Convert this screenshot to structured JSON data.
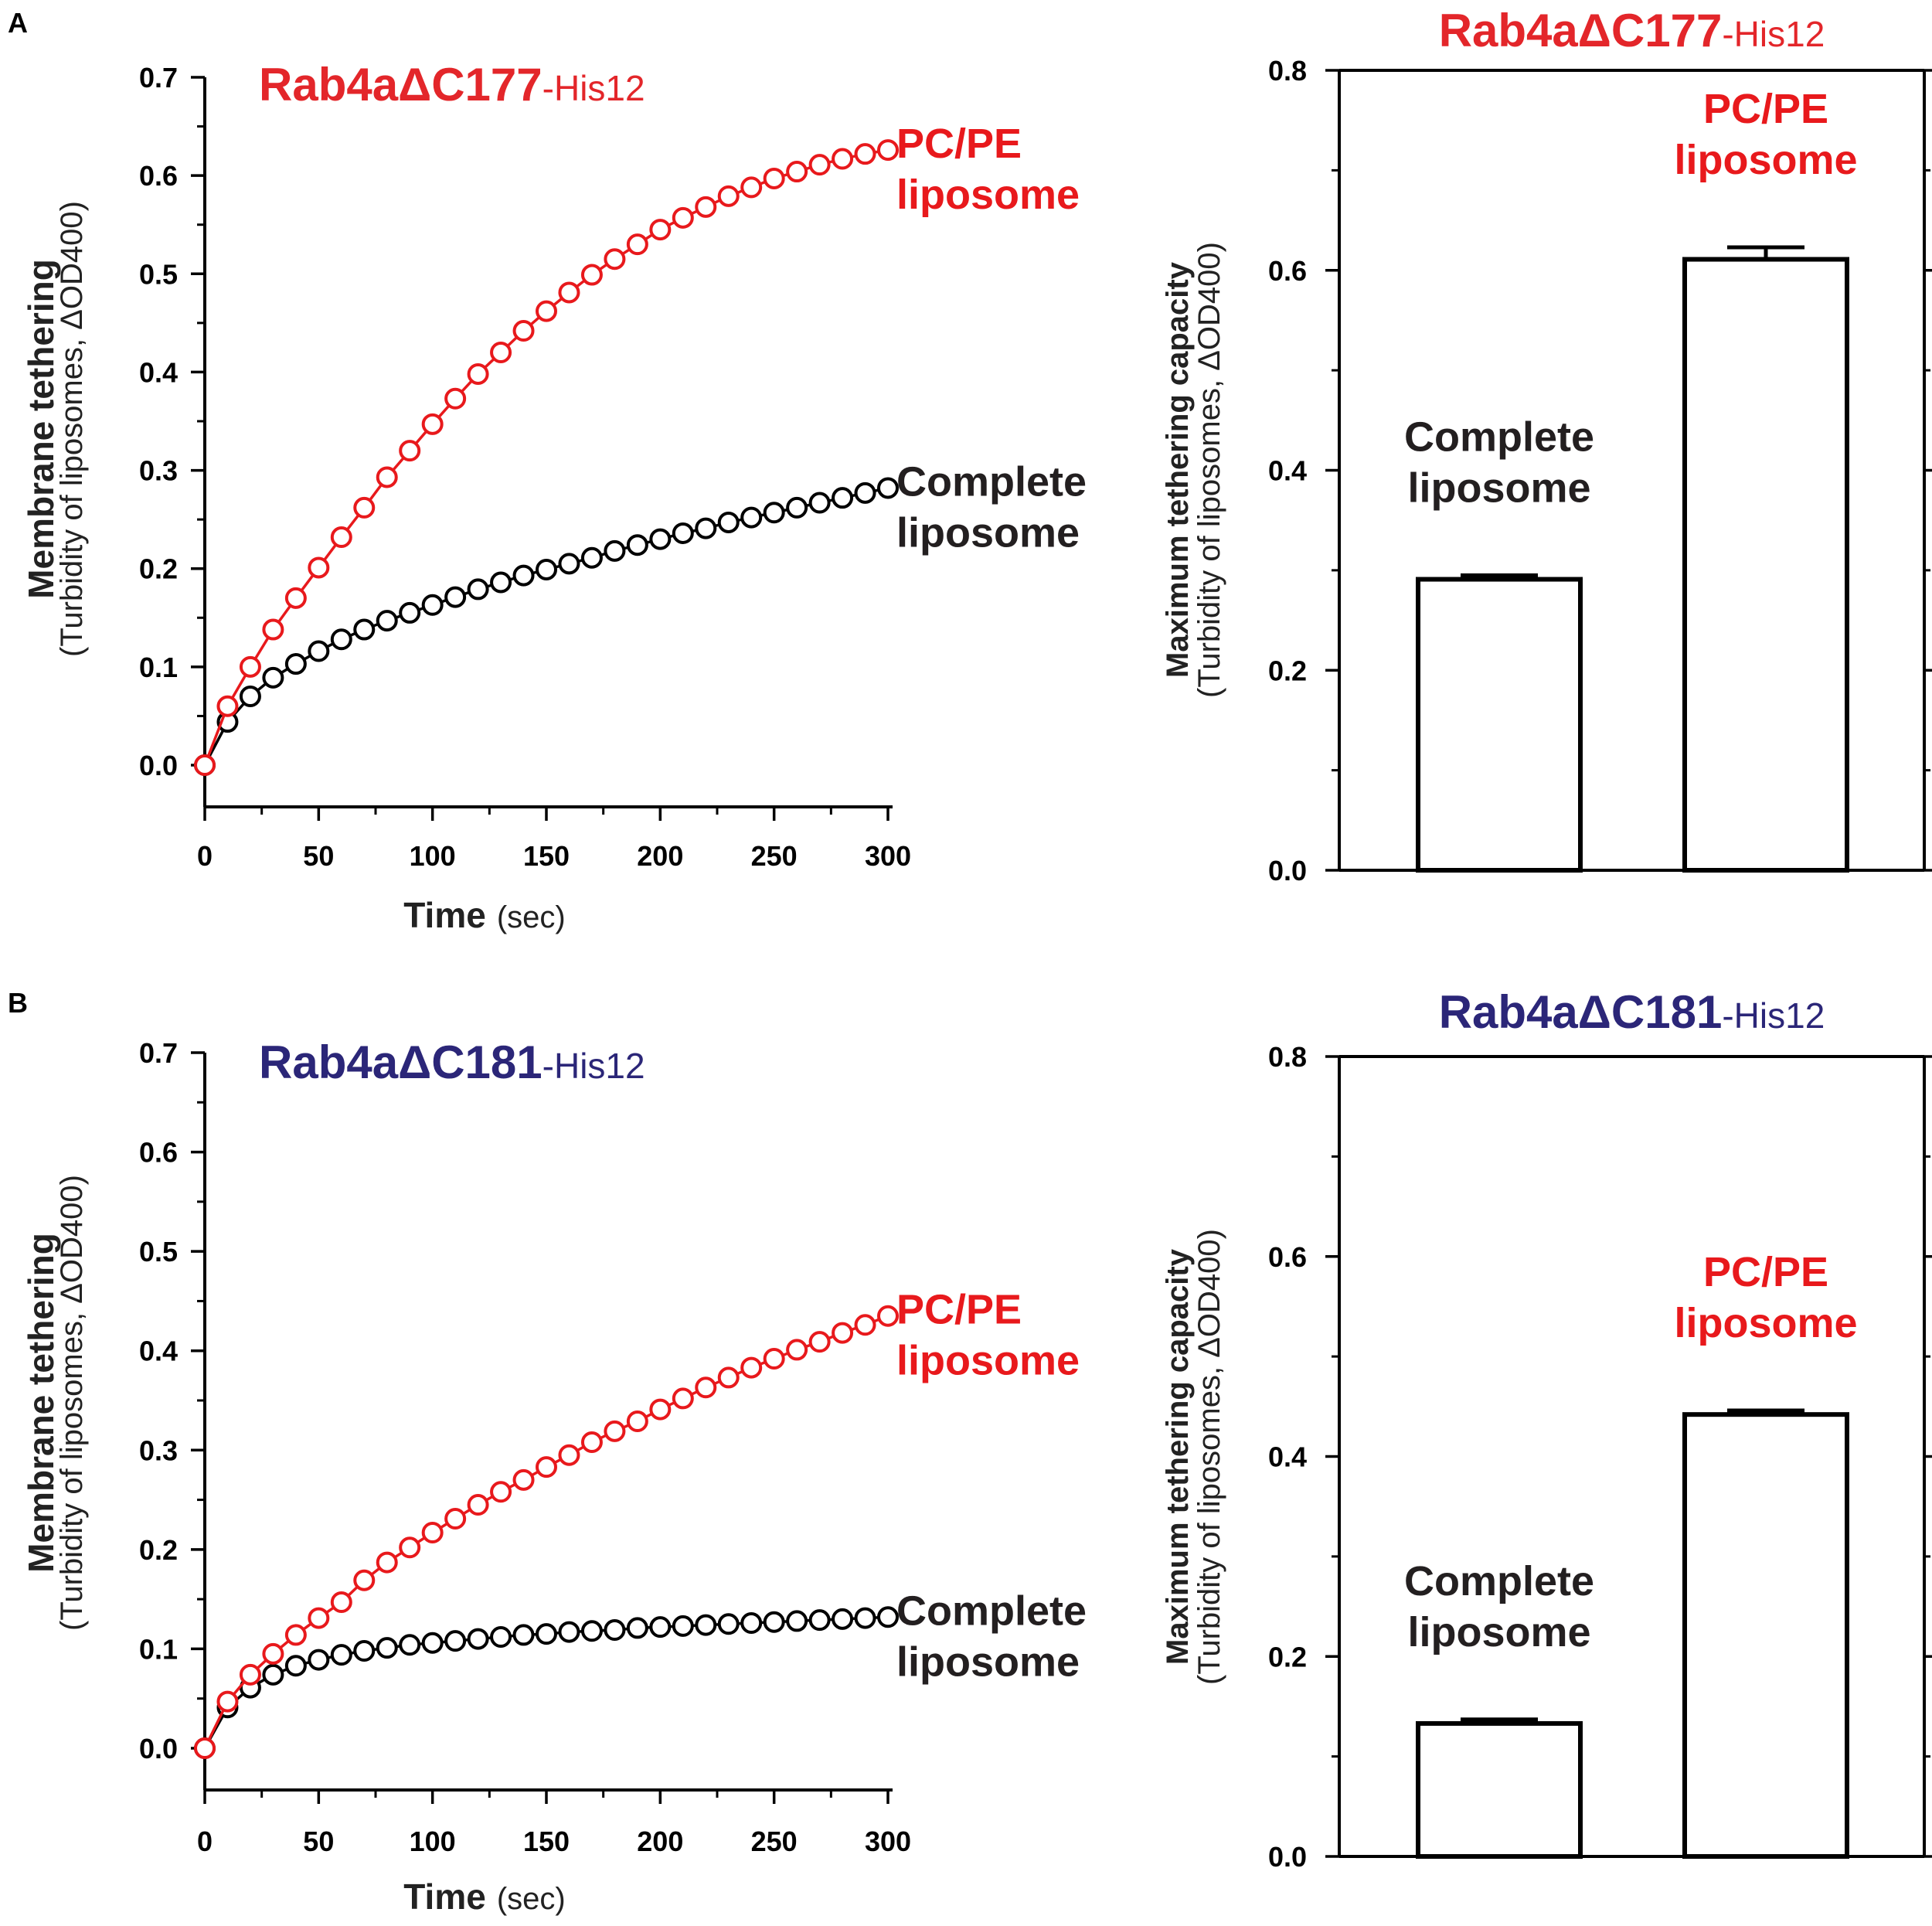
{
  "colors": {
    "axis": "#000000",
    "pc_pe": "#e8191c",
    "complete": "#000000",
    "title_red": "#e3262a",
    "title_navy": "#2b2678",
    "label_dark": "#231f20",
    "bar_fill": "#ffffff"
  },
  "panels": [
    {
      "letter": "A"
    },
    {
      "letter": "B"
    }
  ],
  "chart_data": [
    {
      "type": "scatter",
      "panel": "A",
      "title": "Rab4aΔC177",
      "title_suffix": "-His12",
      "xlabel": "Time",
      "xlabel_unit": "(sec)",
      "ylabel": "Membrane tethering",
      "ylabel_sub": "(Turbidity of liposomes, ΔOD400)",
      "xlim": [
        0,
        300
      ],
      "ylim": [
        0,
        0.7
      ],
      "xticks": [
        "0",
        "50",
        "100",
        "150",
        "200",
        "250",
        "300"
      ],
      "yticks": [
        "0.0",
        "0.1",
        "0.2",
        "0.3",
        "0.4",
        "0.5",
        "0.6",
        "0.7"
      ],
      "x": [
        0,
        10,
        20,
        30,
        40,
        50,
        60,
        70,
        80,
        90,
        100,
        110,
        120,
        130,
        140,
        150,
        160,
        170,
        180,
        190,
        200,
        210,
        220,
        230,
        240,
        250,
        260,
        270,
        280,
        290,
        300
      ],
      "series": [
        {
          "name": "Complete liposome",
          "label_lines": [
            "Complete",
            "liposome"
          ],
          "values": [
            0.0,
            0.044,
            0.07,
            0.089,
            0.103,
            0.116,
            0.128,
            0.138,
            0.147,
            0.155,
            0.163,
            0.171,
            0.179,
            0.186,
            0.193,
            0.199,
            0.205,
            0.211,
            0.218,
            0.224,
            0.23,
            0.236,
            0.241,
            0.247,
            0.252,
            0.257,
            0.262,
            0.267,
            0.272,
            0.277,
            0.282
          ]
        },
        {
          "name": "PC/PE liposome",
          "label_lines": [
            "PC/PE",
            "liposome"
          ],
          "values": [
            0.0,
            0.06,
            0.1,
            0.138,
            0.17,
            0.201,
            0.232,
            0.262,
            0.293,
            0.32,
            0.347,
            0.373,
            0.398,
            0.42,
            0.442,
            0.462,
            0.481,
            0.499,
            0.515,
            0.53,
            0.545,
            0.557,
            0.568,
            0.579,
            0.588,
            0.597,
            0.604,
            0.611,
            0.617,
            0.622,
            0.626
          ]
        }
      ]
    },
    {
      "type": "bar",
      "panel": "A",
      "title": "Rab4aΔC177",
      "title_suffix": "-His12",
      "ylabel": "Maximum tethering capacity",
      "ylabel_sub": "(Turbidity of liposomes, ΔOD400)",
      "ylim": [
        0,
        0.8
      ],
      "yticks": [
        "0.0",
        "0.2",
        "0.4",
        "0.6",
        "0.8"
      ],
      "categories": [
        "Complete liposome",
        "PC/PE liposome"
      ],
      "category_label_lines": [
        [
          "Complete",
          "liposome"
        ],
        [
          "PC/PE",
          "liposome"
        ]
      ],
      "values": [
        0.291,
        0.611
      ],
      "errors": [
        0.004,
        0.012
      ]
    },
    {
      "type": "scatter",
      "panel": "B",
      "title": "Rab4aΔC181",
      "title_suffix": "-His12",
      "xlabel": "Time",
      "xlabel_unit": "(sec)",
      "ylabel": "Membrane tethering",
      "ylabel_sub": "(Turbidity of liposomes, ΔOD400)",
      "xlim": [
        0,
        300
      ],
      "ylim": [
        0,
        0.7
      ],
      "xticks": [
        "0",
        "50",
        "100",
        "150",
        "200",
        "250",
        "300"
      ],
      "yticks": [
        "0.0",
        "0.1",
        "0.2",
        "0.3",
        "0.4",
        "0.5",
        "0.6",
        "0.7"
      ],
      "x": [
        0,
        10,
        20,
        30,
        40,
        50,
        60,
        70,
        80,
        90,
        100,
        110,
        120,
        130,
        140,
        150,
        160,
        170,
        180,
        190,
        200,
        210,
        220,
        230,
        240,
        250,
        260,
        270,
        280,
        290,
        300
      ],
      "series": [
        {
          "name": "Complete liposome",
          "label_lines": [
            "Complete",
            "liposome"
          ],
          "values": [
            0.0,
            0.041,
            0.061,
            0.074,
            0.083,
            0.089,
            0.094,
            0.098,
            0.101,
            0.104,
            0.106,
            0.108,
            0.11,
            0.112,
            0.114,
            0.115,
            0.117,
            0.118,
            0.119,
            0.121,
            0.122,
            0.123,
            0.124,
            0.125,
            0.126,
            0.127,
            0.128,
            0.129,
            0.13,
            0.131,
            0.132
          ]
        },
        {
          "name": "PC/PE liposome",
          "label_lines": [
            "PC/PE",
            "liposome"
          ],
          "values": [
            0.0,
            0.047,
            0.074,
            0.095,
            0.114,
            0.131,
            0.147,
            0.169,
            0.187,
            0.202,
            0.217,
            0.231,
            0.245,
            0.258,
            0.27,
            0.283,
            0.295,
            0.308,
            0.319,
            0.329,
            0.341,
            0.352,
            0.363,
            0.373,
            0.383,
            0.392,
            0.401,
            0.409,
            0.418,
            0.426,
            0.435
          ]
        }
      ]
    },
    {
      "type": "bar",
      "panel": "B",
      "title": "Rab4aΔC181",
      "title_suffix": "-His12",
      "ylabel": "Maximum tethering capacity",
      "ylabel_sub": "(Turbidity of liposomes, ΔOD400)",
      "ylim": [
        0,
        0.8
      ],
      "yticks": [
        "0.0",
        "0.2",
        "0.4",
        "0.6",
        "0.8"
      ],
      "categories": [
        "Complete liposome",
        "PC/PE liposome"
      ],
      "category_label_lines": [
        [
          "Complete",
          "liposome"
        ],
        [
          "PC/PE",
          "liposome"
        ]
      ],
      "values": [
        0.133,
        0.442
      ],
      "errors": [
        0.004,
        0.004
      ]
    }
  ]
}
